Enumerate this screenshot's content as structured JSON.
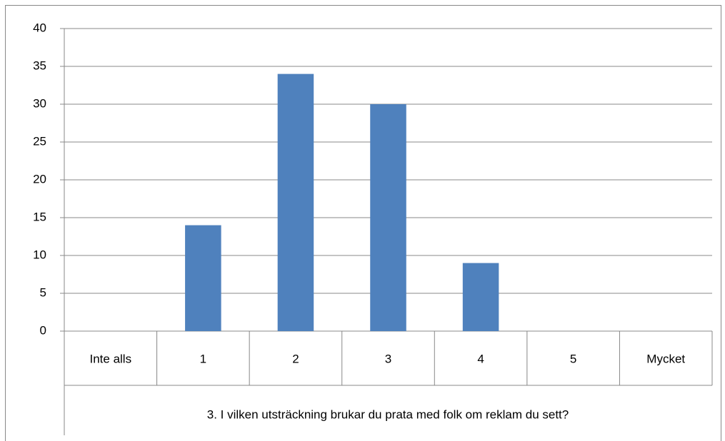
{
  "chart_data": {
    "type": "bar",
    "categories": [
      "Inte alls",
      "1",
      "2",
      "3",
      "4",
      "5",
      "Mycket"
    ],
    "values": [
      0,
      14,
      34,
      30,
      9,
      0,
      0
    ],
    "color": "#4f81bd",
    "x_label": "3. I vilken utsträckning brukar du prata med folk om reklam du sett?",
    "ylim": [
      0,
      40
    ],
    "yticks": [
      0,
      5,
      10,
      15,
      20,
      25,
      30,
      35,
      40
    ],
    "grid": true
  }
}
